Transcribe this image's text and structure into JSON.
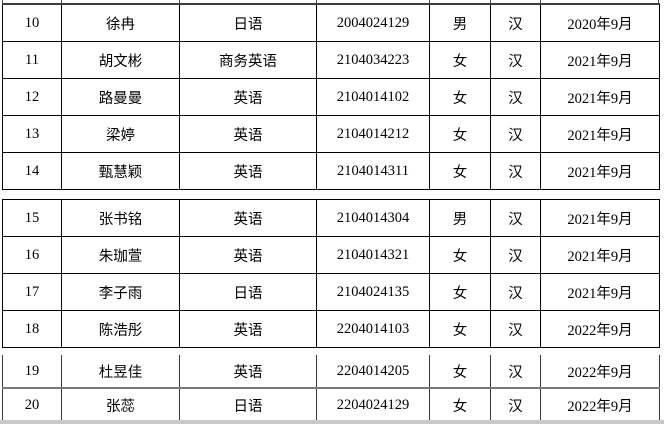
{
  "document": {
    "kind": "student-roster-table",
    "colors": {
      "page_background": "#ffffff",
      "table_border": "#000000",
      "fragment_border": "#7a7a7a",
      "clipped_edge_strip": "#c9c9c9",
      "text": "#000000"
    }
  },
  "table": {
    "fields": [
      "num",
      "name",
      "major",
      "student_id",
      "gender",
      "ethnicity",
      "enroll_date"
    ],
    "rows": [
      {
        "num": "10",
        "name": "徐冉",
        "major": "日语",
        "student_id": "2004024129",
        "gender": "男",
        "ethnicity": "汉",
        "enroll_date": "2020年9月"
      },
      {
        "num": "11",
        "name": "胡文彬",
        "major": "商务英语",
        "student_id": "2104034223",
        "gender": "女",
        "ethnicity": "汉",
        "enroll_date": "2021年9月"
      },
      {
        "num": "12",
        "name": "路曼曼",
        "major": "英语",
        "student_id": "2104014102",
        "gender": "女",
        "ethnicity": "汉",
        "enroll_date": "2021年9月"
      },
      {
        "num": "13",
        "name": "梁婷",
        "major": "英语",
        "student_id": "2104014212",
        "gender": "女",
        "ethnicity": "汉",
        "enroll_date": "2021年9月"
      },
      {
        "num": "14",
        "name": "甄慧颖",
        "major": "英语",
        "student_id": "2104014311",
        "gender": "女",
        "ethnicity": "汉",
        "enroll_date": "2021年9月"
      },
      {
        "num": "15",
        "name": "张书铭",
        "major": "英语",
        "student_id": "2104014304",
        "gender": "男",
        "ethnicity": "汉",
        "enroll_date": "2021年9月"
      },
      {
        "num": "16",
        "name": "朱珈萱",
        "major": "英语",
        "student_id": "2104014321",
        "gender": "女",
        "ethnicity": "汉",
        "enroll_date": "2021年9月"
      },
      {
        "num": "17",
        "name": "李子雨",
        "major": "日语",
        "student_id": "2104024135",
        "gender": "女",
        "ethnicity": "汉",
        "enroll_date": "2021年9月"
      },
      {
        "num": "18",
        "name": "陈浩彤",
        "major": "英语",
        "student_id": "2204014103",
        "gender": "女",
        "ethnicity": "汉",
        "enroll_date": "2022年9月"
      },
      {
        "num": "19",
        "name": "杜昱佳",
        "major": "英语",
        "student_id": "2204014205",
        "gender": "女",
        "ethnicity": "汉",
        "enroll_date": "2022年9月"
      },
      {
        "num": "20",
        "name": "张蕊",
        "major": "日语",
        "student_id": "2204024129",
        "gender": "女",
        "ethnicity": "汉",
        "enroll_date": "2022年9月"
      }
    ],
    "sections": [
      {
        "rows": [
          0,
          1,
          2,
          3,
          4
        ]
      },
      {
        "rows": [
          5,
          6,
          7,
          8
        ]
      },
      {
        "rows": [
          9,
          10
        ]
      }
    ]
  }
}
